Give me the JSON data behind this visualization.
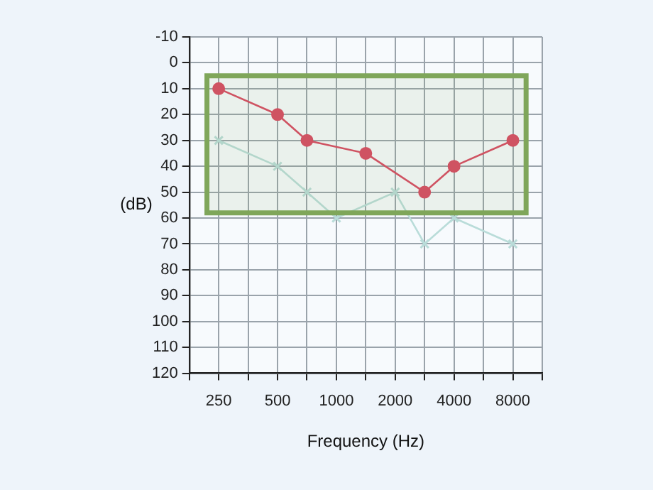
{
  "chart_data": {
    "type": "line",
    "xlabel": "Frequency (Hz)",
    "ylabel": "(dB)",
    "categories": [
      null,
      "250",
      null,
      "500",
      null,
      "1000",
      null,
      "2000",
      null,
      "4000",
      null,
      "8000",
      null
    ],
    "series": [
      {
        "color": "#d94a64",
        "marker": "circle",
        "values": [
          null,
          10,
          null,
          20,
          30,
          null,
          35,
          null,
          50,
          40,
          null,
          30,
          null
        ]
      },
      {
        "color": "#b9dcd9",
        "marker": "cross",
        "values": [
          null,
          30,
          null,
          40,
          50,
          60,
          null,
          50,
          70,
          60,
          null,
          70,
          null
        ]
      }
    ],
    "ylim": [
      120,
      -10
    ],
    "yticks": [
      -10,
      0,
      10,
      20,
      30,
      40,
      50,
      60,
      70,
      80,
      90,
      100,
      110,
      120
    ],
    "grid": true,
    "bands": [
      {
        "axis": "y",
        "from": 5,
        "to": 58,
        "color": "#7fa65a"
      }
    ]
  }
}
